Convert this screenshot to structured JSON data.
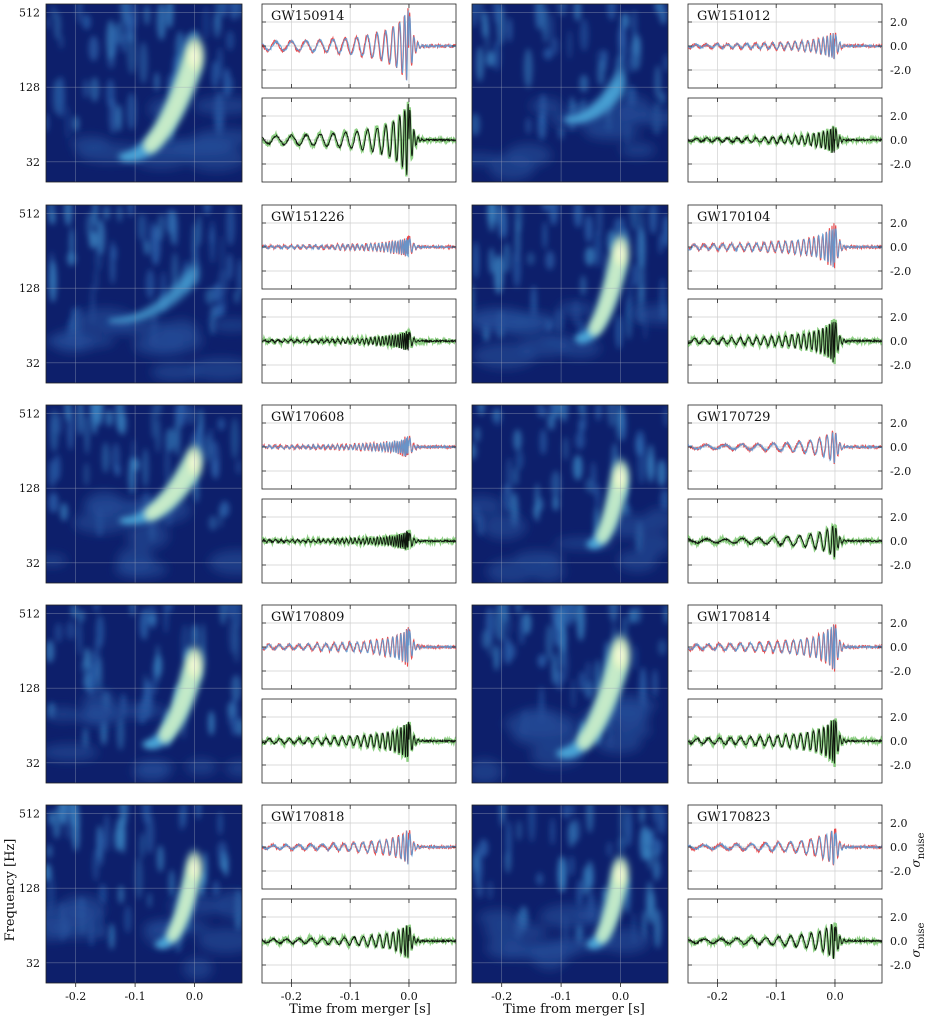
{
  "chart_data": {
    "type": "spectrogram-waveform-grid",
    "events": [
      {
        "label": "GW150914",
        "merger_freq": 230,
        "start_freq": 35,
        "start_time": -0.12,
        "intensity": 1.0,
        "amp": 1.6,
        "cycles": 11
      },
      {
        "label": "GW151012",
        "merger_freq": 140,
        "start_freq": 70,
        "start_time": -0.09,
        "intensity": 0.55,
        "amp": 0.6,
        "cycles": 16
      },
      {
        "label": "GW151226",
        "merger_freq": 170,
        "start_freq": 70,
        "start_time": -0.14,
        "intensity": 0.45,
        "amp": 0.45,
        "cycles": 26
      },
      {
        "label": "GW170104",
        "merger_freq": 250,
        "start_freq": 50,
        "start_time": -0.07,
        "intensity": 0.85,
        "amp": 0.95,
        "cycles": 18
      },
      {
        "label": "GW170608",
        "merger_freq": 210,
        "start_freq": 70,
        "start_time": -0.12,
        "intensity": 0.8,
        "amp": 0.45,
        "cycles": 30
      },
      {
        "label": "GW170729",
        "merger_freq": 160,
        "start_freq": 45,
        "start_time": -0.05,
        "intensity": 0.8,
        "amp": 0.7,
        "cycles": 9
      },
      {
        "label": "GW170809",
        "merger_freq": 200,
        "start_freq": 45,
        "start_time": -0.08,
        "intensity": 0.9,
        "amp": 0.85,
        "cycles": 17
      },
      {
        "label": "GW170814",
        "merger_freq": 240,
        "start_freq": 38,
        "start_time": -0.1,
        "intensity": 1.0,
        "amp": 1.0,
        "cycles": 15
      },
      {
        "label": "GW170818",
        "merger_freq": 190,
        "start_freq": 45,
        "start_time": -0.06,
        "intensity": 0.75,
        "amp": 0.75,
        "cycles": 13
      },
      {
        "label": "GW170823",
        "merger_freq": 170,
        "start_freq": 45,
        "start_time": -0.05,
        "intensity": 0.8,
        "amp": 0.8,
        "cycles": 10
      }
    ],
    "time_xlim": [
      -0.25,
      0.08
    ],
    "spectrogram_ylim": [
      22,
      600
    ],
    "spectrogram_scale": "log",
    "spectrogram_yticks": [
      32,
      128,
      512
    ],
    "spectrogram_ytick_labels": [
      "32",
      "128",
      "512"
    ],
    "waveform_xticks": [
      -0.2,
      -0.1,
      0.0
    ],
    "waveform_xtick_labels": [
      "-0.2",
      "-0.1",
      "0.0"
    ],
    "spectrogram_xtick_labels": [
      "-0.2",
      "-0.1",
      "0.0"
    ],
    "waveform_ylim": [
      -3.5,
      3.5
    ],
    "waveform_yticks": [
      2.0,
      0.0,
      -2.0
    ],
    "waveform_ytick_labels": [
      "2.0",
      "0.0",
      "-2.0"
    ],
    "xlabel": "Time from merger [s]",
    "ylabel": "Frequency [Hz]",
    "right_ylabel": "σnoise",
    "right_ylabel_main": "σ",
    "right_ylabel_sub": "noise",
    "grid": true,
    "colors": {
      "spectrogram_low": "#0d1f6b",
      "spectrogram_mid": "#3c8fc8",
      "spectrogram_high": "#fffde0",
      "waveform_top_a": "#e8383b",
      "waveform_top_b": "#5b9bd5",
      "waveform_bottom_a": "#5dbb4e",
      "waveform_bottom_b": "#000000"
    }
  }
}
